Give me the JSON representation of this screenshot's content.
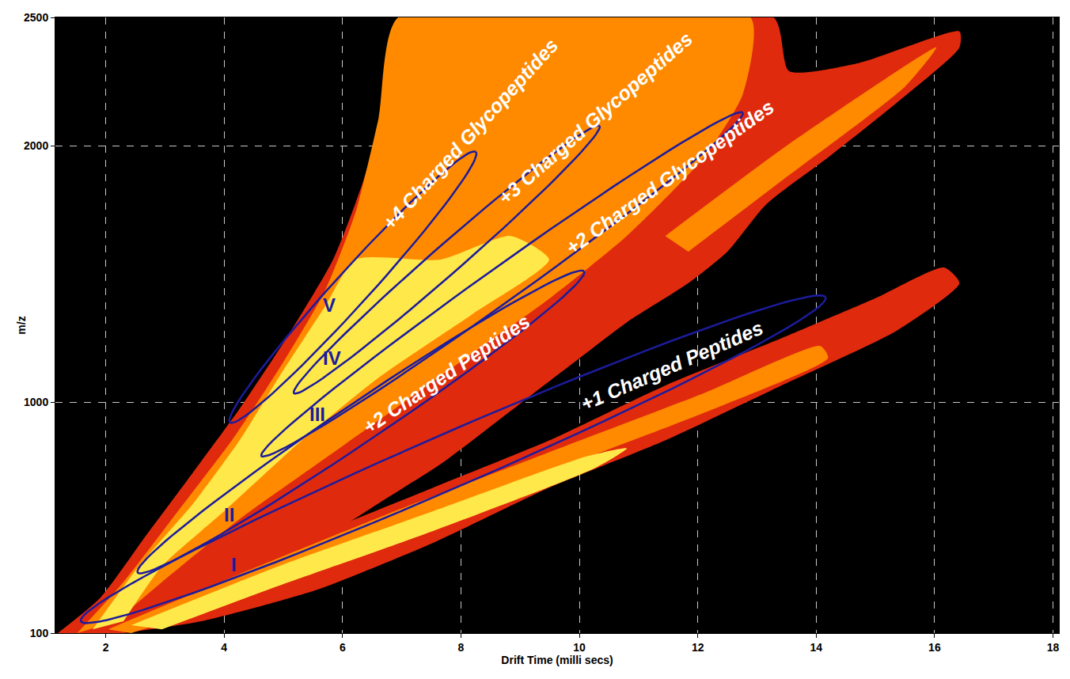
{
  "chart_data": {
    "type": "area",
    "x_label": "Drift Time (milli secs)",
    "y_label": "m/z",
    "xlim": [
      1.15,
      18.1
    ],
    "ylim": [
      100,
      2500
    ],
    "xticks": [
      2,
      4,
      6,
      8,
      10,
      12,
      14,
      16,
      18
    ],
    "yticks": [
      100,
      1000,
      2000,
      2500
    ],
    "grid": true,
    "series": [
      {
        "color": "#e02a0e",
        "x": [
          1.19,
          1.91,
          2.69,
          3.48,
          4.26,
          5.05,
          5.84,
          6.35,
          6.75,
          7.07,
          13.28,
          13.54,
          14.72,
          16.42,
          16.42,
          15.37,
          14.2,
          13.15,
          12.5,
          11.84,
          10.8,
          9.75,
          8.71,
          7.66,
          6.61,
          5.57,
          4.26,
          2.95,
          2.04
        ],
        "y": [
          100,
          238,
          483,
          728,
          974,
          1249,
          1556,
          1862,
          2200,
          2500,
          2500,
          2291,
          2322,
          2445,
          2383,
          2169,
          1954,
          1770,
          1587,
          1464,
          1311,
          1127,
          943,
          759,
          606,
          452,
          269,
          146,
          100
        ]
      },
      {
        "color": "#e02a0e",
        "x": [
          1.78,
          3.61,
          5.57,
          7.53,
          9.49,
          11.45,
          13.41,
          14.98,
          16.16,
          16.42,
          15.37,
          13.41,
          11.45,
          9.49,
          7.53,
          5.57,
          3.61,
          2.3
        ],
        "y": [
          100,
          299,
          483,
          667,
          851,
          1065,
          1249,
          1403,
          1525,
          1464,
          1280,
          1065,
          851,
          667,
          452,
          269,
          146,
          100
        ]
      },
      {
        "color": "#ff8a00",
        "x": [
          1.52,
          2.3,
          3.22,
          4.13,
          4.92,
          5.7,
          6.22,
          6.61,
          6.94,
          12.89,
          12.76,
          12.1,
          10.8,
          9.49,
          8.18,
          6.88,
          5.57,
          4.26,
          2.95,
          2.17
        ],
        "y": [
          100,
          299,
          575,
          851,
          1127,
          1433,
          1740,
          2108,
          2500,
          2500,
          2200,
          1954,
          1648,
          1403,
          1188,
          974,
          759,
          544,
          299,
          146
        ]
      },
      {
        "color": "#ff8a00",
        "x": [
          11.45,
          13.41,
          15.37,
          16.03,
          15.5,
          13.41,
          11.84
        ],
        "y": [
          1648,
          1985,
          2291,
          2383,
          2230,
          1862,
          1587
        ]
      },
      {
        "color": "#ff8a00",
        "x": [
          2.04,
          4.26,
          6.88,
          9.49,
          12.1,
          14.07,
          14.2,
          12.1,
          9.49,
          6.88,
          4.26,
          2.43
        ],
        "y": [
          115,
          330,
          575,
          805,
          1035,
          1219,
          1173,
          958,
          728,
          483,
          238,
          100
        ]
      },
      {
        "color": "#ffe84a",
        "x": [
          1.78,
          2.56,
          3.48,
          4.26,
          4.92,
          5.7,
          6.22,
          7.66,
          8.84,
          9.49,
          8.18,
          6.61,
          5.31,
          4.0,
          2.95,
          2.3
        ],
        "y": [
          115,
          361,
          606,
          851,
          1096,
          1372,
          1556,
          1556,
          1648,
          1556,
          1341,
          1096,
          851,
          575,
          361,
          146
        ]
      },
      {
        "color": "#ffe84a",
        "x": [
          2.43,
          4.92,
          7.53,
          10.14,
          10.8,
          10.27,
          7.53,
          4.92,
          2.95
        ],
        "y": [
          131,
          361,
          575,
          790,
          820,
          744,
          498,
          284,
          115
        ]
      }
    ],
    "regions": [
      {
        "label": "I",
        "name": "+1 Charged Peptides",
        "color": "#1c1c9c",
        "ends": [
          [
            1.58,
            146
          ],
          [
            14.16,
            1409
          ]
        ],
        "through": [
          7.69,
          875
        ],
        "label_at": [
          4.16,
          367
        ],
        "name_at": [
          11.56,
          1142
        ]
      },
      {
        "label": "II",
        "name": "+2 Charged Peptides",
        "color": "#1c1c9c",
        "ends": [
          [
            2.54,
            336
          ],
          [
            10.08,
            1510
          ]
        ],
        "through": [
          6.12,
          987
        ],
        "label_at": [
          4.09,
          560
        ],
        "name_at": [
          7.76,
          1111
        ]
      },
      {
        "label": "III",
        "name": "+2 Charged Glycopeptides",
        "color": "#1c1c9c",
        "ends": [
          [
            4.63,
            790
          ],
          [
            12.76,
            2129
          ]
        ],
        "through": [
          8.53,
          1515
        ],
        "label_at": [
          5.58,
          952
        ],
        "name_at": [
          11.52,
          1878
        ]
      },
      {
        "label": "IV",
        "name": "+3 Charged Glycopeptides",
        "color": "#1c1c9c",
        "ends": [
          [
            5.18,
            1035
          ],
          [
            10.34,
            2077
          ]
        ],
        "through": [
          7.6,
          1598
        ],
        "label_at": [
          5.82,
          1173
        ],
        "name_at": [
          10.27,
          2108
        ]
      },
      {
        "label": "V",
        "name": "+4 Charged Glycopeptides",
        "color": "#1c1c9c",
        "ends": [
          [
            4.1,
            921
          ],
          [
            8.25,
            1976
          ]
        ],
        "through": [
          5.96,
          1494
        ],
        "label_at": [
          5.78,
          1378
        ],
        "name_at": [
          8.16,
          2046
        ]
      }
    ]
  }
}
